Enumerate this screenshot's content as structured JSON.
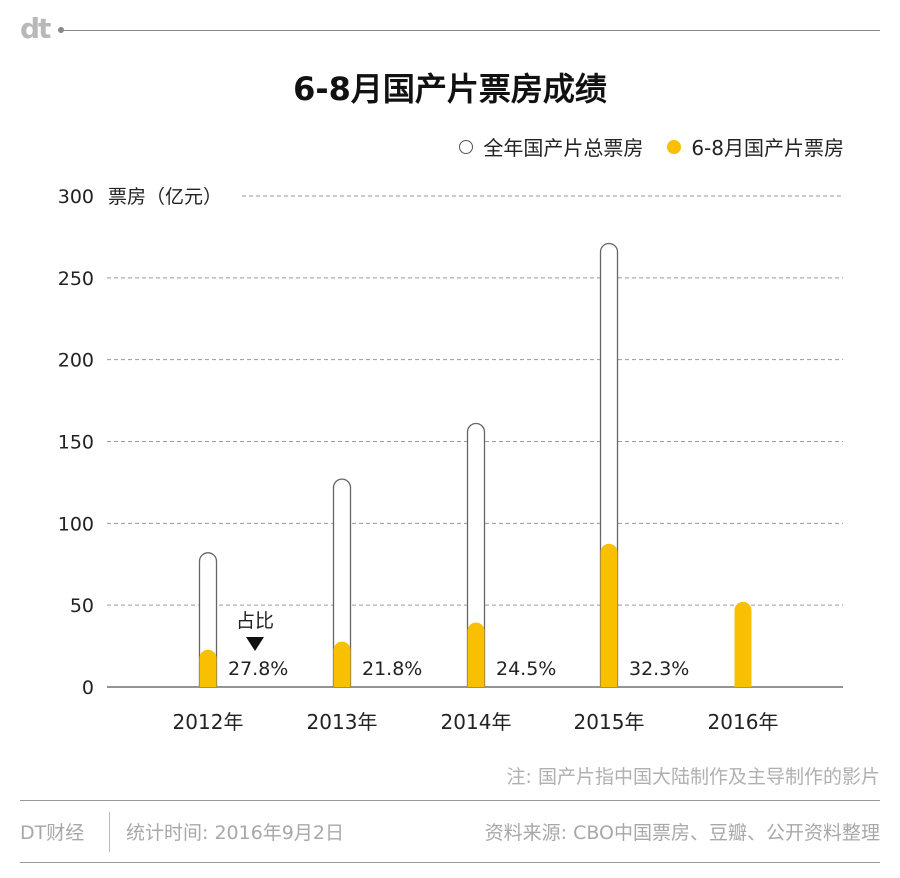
{
  "brand_logo": "dt",
  "chart_data": {
    "type": "bar",
    "title": "6-8月国产片票房成绩",
    "ylabel": "票房（亿元）",
    "ylim": [
      0,
      300
    ],
    "yticks": [
      "0",
      "50",
      "100",
      "150",
      "200",
      "250",
      "300"
    ],
    "categories": [
      "2012年",
      "2013年",
      "2014年",
      "2015年",
      "2016年"
    ],
    "series": [
      {
        "name": "全年国产片总票房",
        "values": [
          82,
          127,
          161,
          271,
          null
        ],
        "color": "#ffffff",
        "style": "hollow"
      },
      {
        "name": "6-8月国产片票房",
        "values": [
          22.8,
          27.7,
          39.4,
          87.5,
          52
        ],
        "color": "#f8c000",
        "style": "filled"
      }
    ],
    "share_labels": [
      "27.8%",
      "21.8%",
      "24.5%",
      "32.3%",
      ""
    ],
    "annotation": "占比",
    "grid": "dashed",
    "legend": "top-right"
  },
  "note": "注: 国产片指中国大陆制作及主导制作的影片",
  "footer": {
    "brand": "DT财经",
    "stat_time": "统计时间: 2016年9月2日",
    "source": "资料来源: CBO中国票房、豆瓣、公开资料整理"
  }
}
